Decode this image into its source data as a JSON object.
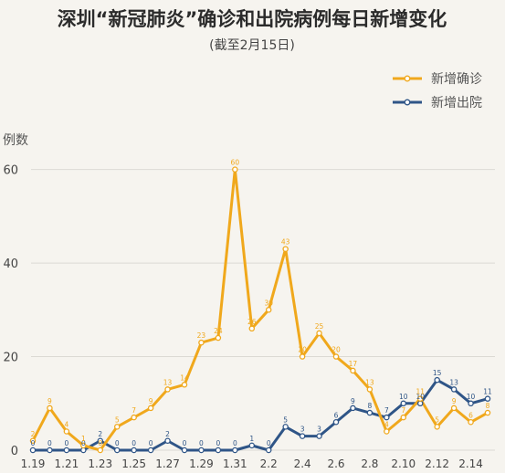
{
  "chart_data": {
    "type": "line",
    "title": "深圳“新冠肺炎”确诊和出院病例每日新增变化",
    "subtitle": "(截至2月15日)",
    "xlabel": "",
    "ylabel": "例数",
    "ylim": [
      0,
      65
    ],
    "yticks": [
      0,
      20,
      40,
      60
    ],
    "grid": true,
    "legend_position": "top-right",
    "x": [
      "1.19",
      "1.20",
      "1.21",
      "1.22",
      "1.23",
      "1.24",
      "1.25",
      "1.26",
      "1.27",
      "1.28",
      "1.29",
      "1.30",
      "1.31",
      "2.1",
      "2.2",
      "2.3",
      "2.4",
      "2.5",
      "2.6",
      "2.7",
      "2.8",
      "2.9",
      "2.10",
      "2.11",
      "2.12",
      "2.13",
      "2.14",
      "2.15"
    ],
    "xtick_labels": [
      "1.19",
      "1.21",
      "1.23",
      "1.25",
      "1.27",
      "1.29",
      "1.31",
      "2.2",
      "2.4",
      "2.6",
      "2.8",
      "2.10",
      "2.12",
      "2.14"
    ],
    "series": [
      {
        "name": "新增确诊",
        "color": "#f0a81c",
        "values": [
          2,
          9,
          4,
          1,
          0,
          5,
          7,
          9,
          13,
          14,
          23,
          24,
          60,
          26,
          30,
          43,
          20,
          25,
          20,
          17,
          13,
          4,
          7,
          11,
          5,
          9,
          6,
          8
        ]
      },
      {
        "name": "新增出院",
        "color": "#2f5587",
        "values": [
          0,
          0,
          0,
          0,
          2,
          0,
          0,
          0,
          2,
          0,
          0,
          0,
          0,
          1,
          0,
          5,
          3,
          3,
          6,
          9,
          8,
          7,
          10,
          10,
          15,
          13,
          10,
          11
        ]
      }
    ]
  }
}
